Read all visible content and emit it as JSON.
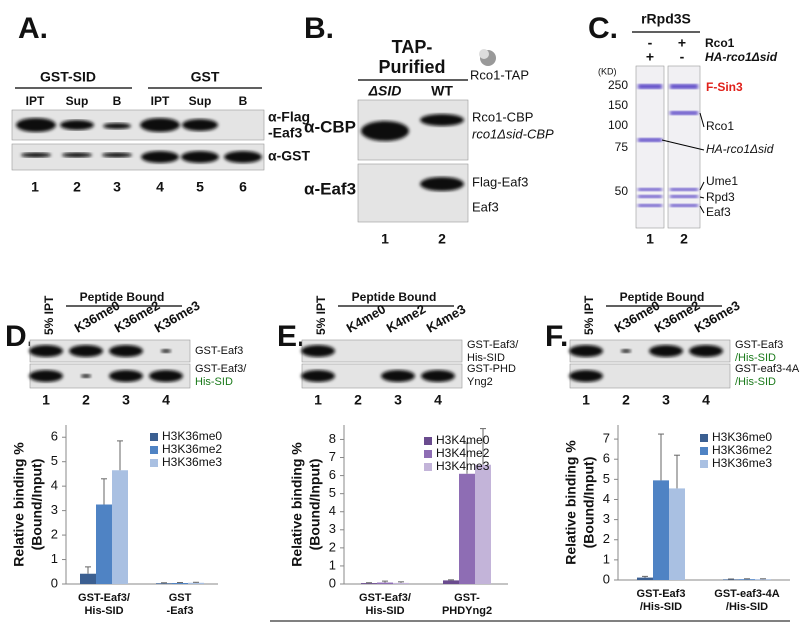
{
  "panel_a": {
    "letter": "A.",
    "groups": [
      "GST-SID",
      "GST"
    ],
    "lanes": [
      "IPT",
      "Sup",
      "B",
      "IPT",
      "Sup",
      "B"
    ],
    "blot_labels": [
      [
        "α-Flag",
        "-Eaf3"
      ],
      [
        "α-GST"
      ]
    ],
    "lane_numbers": [
      "1",
      "2",
      "3",
      "4",
      "5",
      "6"
    ]
  },
  "panel_b": {
    "letter": "B.",
    "header": [
      "TAP-",
      "Purified"
    ],
    "lanes": [
      "ΔSID",
      "WT"
    ],
    "icon_label": "Rco1-TAP",
    "blots": [
      {
        "antibody": "α-CBP",
        "bands": [
          "Rco1-CBP",
          "rco1Δsid-CBP"
        ]
      },
      {
        "antibody": "α-Eaf3",
        "bands": [
          "Flag-Eaf3",
          "Eaf3"
        ]
      }
    ],
    "lane_numbers": [
      "1",
      "2"
    ]
  },
  "panel_c": {
    "letter": "C.",
    "title": "rRpd3S",
    "rows": [
      [
        "-",
        "+",
        "Rco1"
      ],
      [
        "+",
        "-",
        "HA-rco1Δsid"
      ]
    ],
    "unit": "(KD)",
    "markers": [
      "250",
      "150",
      "100",
      "75",
      "50"
    ],
    "bands": [
      "F-Sin3",
      "Rco1",
      "HA-rco1Δsid",
      "Ume1",
      "Rpd3",
      "Eaf3"
    ],
    "lane_numbers": [
      "1",
      "2"
    ]
  },
  "panel_d": {
    "letter": "D.",
    "input": "5% IPT",
    "header": "Peptide Bound",
    "lanes": [
      "K36me0",
      "K36me2",
      "K36me3"
    ],
    "blot_labels": [
      [
        "GST-Eaf3"
      ],
      [
        "GST-Eaf3/",
        "His-SID"
      ]
    ],
    "lane_numbers": [
      "1",
      "2",
      "3",
      "4"
    ]
  },
  "panel_e": {
    "letter": "E.",
    "input": "5% IPT",
    "header": "Peptide Bound",
    "lanes": [
      "K4me0",
      "K4me2",
      "K4me3"
    ],
    "blot_labels": [
      [
        "GST-Eaf3/",
        "His-SID"
      ],
      [
        "GST-PHD",
        "Yng2"
      ]
    ],
    "lane_numbers": [
      "1",
      "2",
      "3",
      "4"
    ]
  },
  "panel_f": {
    "letter": "F.",
    "input": "5% IPT",
    "header": "Peptide Bound",
    "lanes": [
      "K36me0",
      "K36me2",
      "K36me3"
    ],
    "blot_labels": [
      [
        "GST-Eaf3",
        "/His-SID"
      ],
      [
        "GST-eaf3-4A",
        "/His-SID"
      ]
    ],
    "lane_numbers": [
      "1",
      "2",
      "3",
      "4"
    ]
  },
  "chart_data": [
    {
      "type": "bar",
      "ylabel": [
        "Relative binding %",
        "(Bound/Input)"
      ],
      "categories": [
        [
          "GST-Eaf3/",
          "His-SID"
        ],
        [
          "GST",
          "-Eaf3"
        ]
      ],
      "category_colors": [
        [
          "#000000",
          "#1a7a1a"
        ],
        [
          "#000000",
          "#000000"
        ]
      ],
      "series": [
        {
          "name": "H3K36me0",
          "color": "#3b5f91",
          "values": [
            0.42,
            0.03
          ],
          "errors": [
            0.28,
            0.02
          ]
        },
        {
          "name": "H3K36me2",
          "color": "#4f83c4",
          "values": [
            3.25,
            0.04
          ],
          "errors": [
            1.05,
            0.02
          ]
        },
        {
          "name": "H3K36me3",
          "color": "#a9c0e2",
          "values": [
            4.65,
            0.05
          ],
          "errors": [
            1.2,
            0.02
          ]
        }
      ],
      "ylim": [
        0,
        6.5
      ],
      "yticks": [
        0,
        1,
        2,
        3,
        4,
        5,
        6
      ]
    },
    {
      "type": "bar",
      "ylabel": [
        "Relative binding %",
        "(Bound/Input)"
      ],
      "categories": [
        [
          "GST-Eaf3/",
          "His-SID"
        ],
        [
          "GST-",
          "PHDYng2"
        ]
      ],
      "category_colors": [
        [
          "#000000",
          "#1a7a1a"
        ],
        [
          "#000000",
          "#000000"
        ]
      ],
      "series": [
        {
          "name": "H3K4me0",
          "color": "#6a4b8e",
          "values": [
            0.05,
            0.2
          ],
          "errors": [
            0.02,
            0.03
          ]
        },
        {
          "name": "H3K4me2",
          "color": "#8e6db4",
          "values": [
            0.08,
            6.1
          ],
          "errors": [
            0.08,
            1.7
          ]
        },
        {
          "name": "H3K4me3",
          "color": "#c3b4d9",
          "values": [
            0.06,
            6.6
          ],
          "errors": [
            0.06,
            2.0
          ]
        }
      ],
      "ylim": [
        0,
        8.8
      ],
      "yticks": [
        0,
        1,
        2,
        3,
        4,
        5,
        6,
        7,
        8
      ]
    },
    {
      "type": "bar",
      "ylabel": [
        "Relative binding %",
        "(Bound/Input)"
      ],
      "categories": [
        [
          "GST-Eaf3",
          "/His-SID"
        ],
        [
          "GST-eaf3-4A",
          "/His-SID"
        ]
      ],
      "category_colors": [
        [
          "#000000",
          "#1a7a1a"
        ],
        [
          "#000000",
          "#1a7a1a"
        ]
      ],
      "series": [
        {
          "name": "H3K36me0",
          "color": "#3b5f91",
          "values": [
            0.12,
            0.03
          ],
          "errors": [
            0.06,
            0.02
          ]
        },
        {
          "name": "H3K36me2",
          "color": "#4f83c4",
          "values": [
            4.95,
            0.04
          ],
          "errors": [
            2.3,
            0.02
          ]
        },
        {
          "name": "H3K36me3",
          "color": "#a9c0e2",
          "values": [
            4.55,
            0.04
          ],
          "errors": [
            1.65,
            0.02
          ]
        }
      ],
      "ylim": [
        0,
        7.7
      ],
      "yticks": [
        0,
        1,
        2,
        3,
        4,
        5,
        6,
        7
      ]
    }
  ]
}
